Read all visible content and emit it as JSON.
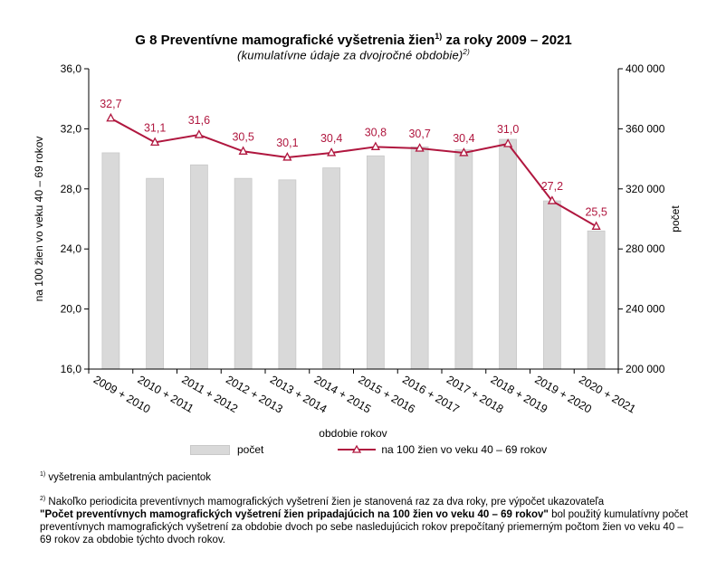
{
  "header": {
    "title": "G 8 Preventívne mamografické vyšetrenia žien",
    "title_sup": "1)",
    "title_tail": " za roky 2009 – 2021",
    "subtitle": "(kumulatívne údaje za dvojročné obdobie)",
    "subtitle_sup": "2)"
  },
  "chart_data": {
    "type": "bar+line",
    "title": "G 8 Preventívne mamografické vyšetrenia žien za roky 2009 – 2021",
    "xlabel": "obdobie rokov",
    "ylabel_left": "na 100 žien vo veku 40 – 69 rokov",
    "ylabel_right": "počet",
    "categories": [
      "2009 + 2010",
      "2010 + 2011",
      "2011 + 2012",
      "2012 + 2013",
      "2013 + 2014",
      "2014 + 2015",
      "2015 + 2016",
      "2016 + 2017",
      "2017 + 2018",
      "2018 + 2019",
      "2019 + 2020",
      "2020 + 2021"
    ],
    "bars": {
      "name": "počet",
      "axis": "right",
      "color": "#d9d9d9",
      "values": [
        344000,
        327000,
        336000,
        327000,
        326000,
        334000,
        342000,
        348000,
        346000,
        353000,
        312000,
        292000
      ]
    },
    "line": {
      "name": "na 100 žien vo veku 40 – 69 rokov",
      "axis": "left",
      "color": "#b0173f",
      "values": [
        32.7,
        31.1,
        31.6,
        30.5,
        30.1,
        30.4,
        30.8,
        30.7,
        30.4,
        31.0,
        27.2,
        25.5
      ],
      "labels": [
        "32,7",
        "31,1",
        "31,6",
        "30,5",
        "30,1",
        "30,4",
        "30,8",
        "30,7",
        "30,4",
        "31,0",
        "27,2",
        "25,5"
      ]
    },
    "ylim_left": [
      16.0,
      36.0
    ],
    "yticks_left": [
      "16,0",
      "20,0",
      "24,0",
      "28,0",
      "32,0",
      "36,0"
    ],
    "ylim_right": [
      200000,
      400000
    ],
    "yticks_right": [
      "200 000",
      "240 000",
      "280 000",
      "320 000",
      "360 000",
      "400 000"
    ],
    "grid": false,
    "legend_position": "bottom"
  },
  "legend": {
    "bar_label": "počet",
    "line_label": "na 100 žien vo veku 40 – 69 rokov"
  },
  "notes": {
    "note1_sup": "1)",
    "note1": " vyšetrenia ambulantných pacientok",
    "note2_sup": "2)",
    "note2_a": " Nakoľko periodicita preventívnych mamografických vyšetrení žien je stanovená raz za dva roky, pre výpočet ukazovateľa",
    "note2_bold": "\"Počet preventívnych mamografických vyšetrení žien pripadajúcich na 100 žien vo veku 40 – 69 rokov\"",
    "note2_b": " bol použitý kumulatívny počet preventívnych mamografických vyšetrení za obdobie dvoch po sebe nasledujúcich rokov prepočítaný priemerným počtom žien vo veku 40 – 69 rokov za obdobie týchto dvoch rokov."
  }
}
